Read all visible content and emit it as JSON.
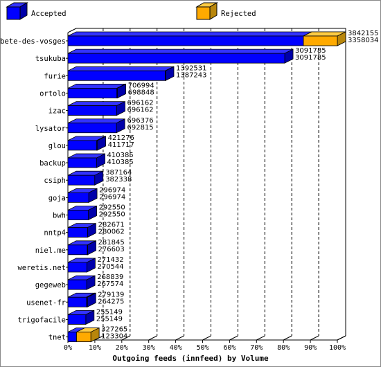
{
  "chart_data": {
    "type": "bar",
    "orientation": "horizontal",
    "style": "3d",
    "title": "",
    "xlabel": "Outgoing feeds (innfeed) by Volume",
    "ylabel": "",
    "xlim": [
      0,
      100
    ],
    "x_unit": "percent",
    "x_ticks": [
      "0%",
      "10%",
      "20%",
      "30%",
      "40%",
      "50%",
      "60%",
      "70%",
      "80%",
      "90%",
      "100%"
    ],
    "legend_position": "top",
    "grid": "vertical dashed",
    "categories": [
      "bete-des-vosges",
      "tsukuba",
      "furie",
      "ortolo",
      "izac",
      "lysator",
      "glou",
      "backup",
      "csiph",
      "goja",
      "bwh",
      "nntp4",
      "niel.me",
      "weretis.net",
      "gegeweb",
      "usenet-fr",
      "trigofacile",
      "tnet"
    ],
    "series": [
      {
        "name": "Accepted",
        "color": "#0000ff",
        "values": [
          3842155,
          3091785,
          1392531,
          706994,
          696162,
          696376,
          421276,
          410385,
          387164,
          296974,
          292550,
          282671,
          281845,
          271432,
          268839,
          279139,
          255149,
          327265
        ]
      },
      {
        "name": "Rejected",
        "color": "#ffaa00",
        "values": [
          3358034,
          3091785,
          1387243,
          698848,
          696162,
          692815,
          411717,
          410385,
          382338,
          296974,
          292550,
          280062,
          276603,
          270544,
          267574,
          264275,
          255149,
          123304
        ]
      }
    ]
  }
}
